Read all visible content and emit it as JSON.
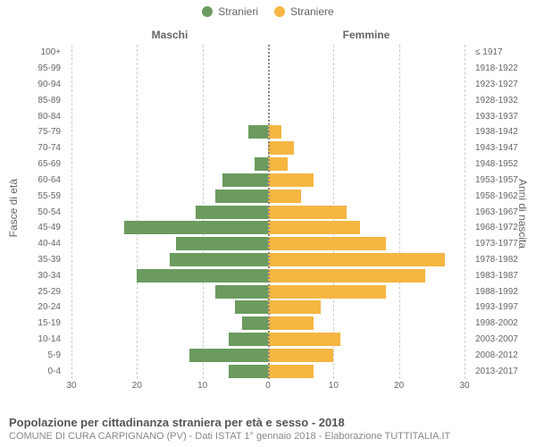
{
  "legend": {
    "male": {
      "label": "Stranieri",
      "color": "#6b9b5f"
    },
    "female": {
      "label": "Straniere",
      "color": "#f5b642"
    }
  },
  "headers": {
    "male": "Maschi",
    "female": "Femmine"
  },
  "axis_titles": {
    "left": "Fasce di età",
    "right": "Anni di nascita"
  },
  "x_axis": {
    "max": 30,
    "ticks": [
      30,
      20,
      10,
      0,
      10,
      20,
      30
    ]
  },
  "colors": {
    "male_bar": "#6b9b5f",
    "female_bar": "#f5b642",
    "grid": "#cccccc",
    "center": "#888888"
  },
  "rows": [
    {
      "age": "100+",
      "birth": "≤ 1917",
      "m": 0,
      "f": 0
    },
    {
      "age": "95-99",
      "birth": "1918-1922",
      "m": 0,
      "f": 0
    },
    {
      "age": "90-94",
      "birth": "1923-1927",
      "m": 0,
      "f": 0
    },
    {
      "age": "85-89",
      "birth": "1928-1932",
      "m": 0,
      "f": 0
    },
    {
      "age": "80-84",
      "birth": "1933-1937",
      "m": 0,
      "f": 0
    },
    {
      "age": "75-79",
      "birth": "1938-1942",
      "m": 3,
      "f": 2
    },
    {
      "age": "70-74",
      "birth": "1943-1947",
      "m": 0,
      "f": 4
    },
    {
      "age": "65-69",
      "birth": "1948-1952",
      "m": 2,
      "f": 3
    },
    {
      "age": "60-64",
      "birth": "1953-1957",
      "m": 7,
      "f": 7
    },
    {
      "age": "55-59",
      "birth": "1958-1962",
      "m": 8,
      "f": 5
    },
    {
      "age": "50-54",
      "birth": "1963-1967",
      "m": 11,
      "f": 12
    },
    {
      "age": "45-49",
      "birth": "1968-1972",
      "m": 22,
      "f": 14
    },
    {
      "age": "40-44",
      "birth": "1973-1977",
      "m": 14,
      "f": 18
    },
    {
      "age": "35-39",
      "birth": "1978-1982",
      "m": 15,
      "f": 27
    },
    {
      "age": "30-34",
      "birth": "1983-1987",
      "m": 20,
      "f": 24
    },
    {
      "age": "25-29",
      "birth": "1988-1992",
      "m": 8,
      "f": 18
    },
    {
      "age": "20-24",
      "birth": "1993-1997",
      "m": 5,
      "f": 8
    },
    {
      "age": "15-19",
      "birth": "1998-2002",
      "m": 4,
      "f": 7
    },
    {
      "age": "10-14",
      "birth": "2003-2007",
      "m": 6,
      "f": 11
    },
    {
      "age": "5-9",
      "birth": "2008-2012",
      "m": 12,
      "f": 10
    },
    {
      "age": "0-4",
      "birth": "2013-2017",
      "m": 6,
      "f": 7
    }
  ],
  "footer": {
    "title": "Popolazione per cittadinanza straniera per età e sesso - 2018",
    "subtitle": "COMUNE DI CURA CARPIGNANO (PV) - Dati ISTAT 1° gennaio 2018 - Elaborazione TUTTITALIA.IT"
  }
}
